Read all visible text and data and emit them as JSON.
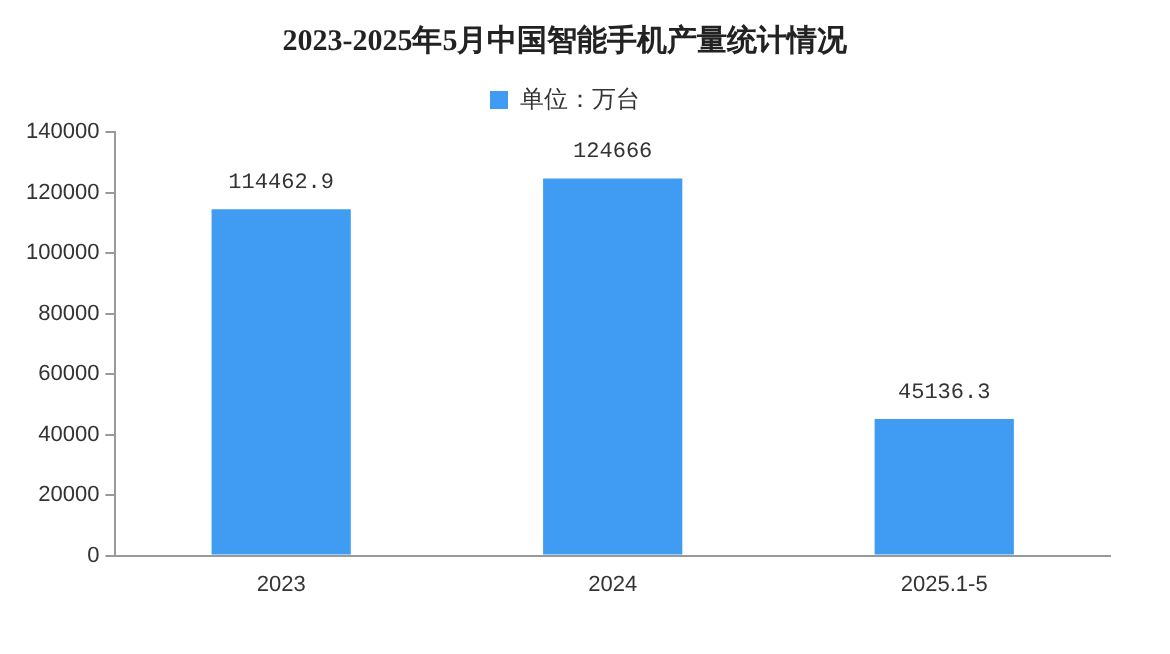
{
  "chart_data": {
    "type": "bar",
    "title": "2023-2025年5月中国智能手机产量统计情况",
    "categories": [
      "2023",
      "2024",
      "2025.1-5"
    ],
    "series": [
      {
        "name": "单位：万台",
        "color": "#3f9cf2",
        "values": [
          114462.9,
          124666,
          45136.3
        ]
      }
    ],
    "ylim": [
      0,
      140000
    ],
    "yticks": [
      0,
      20000,
      40000,
      60000,
      80000,
      100000,
      120000,
      140000
    ],
    "grid": false,
    "legend": "top",
    "data_labels": true
  }
}
